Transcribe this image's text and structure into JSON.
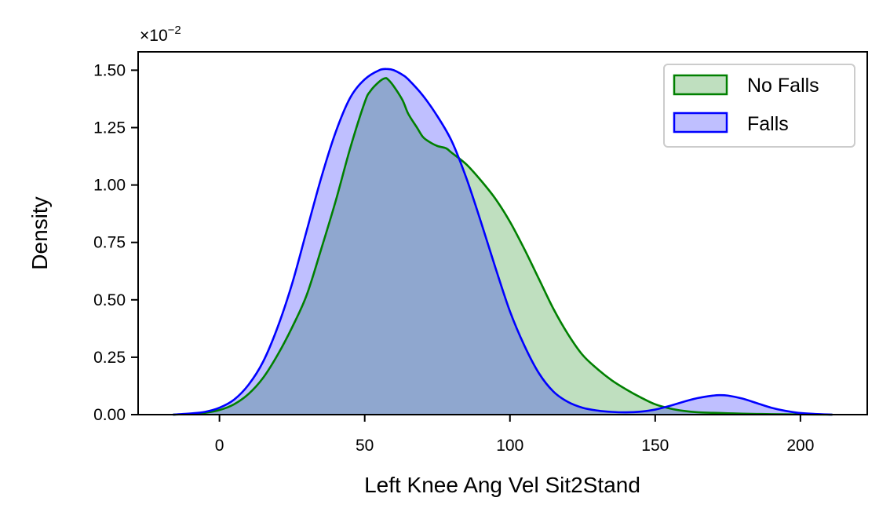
{
  "chart_data": {
    "type": "area",
    "xlabel": "Left Knee Ang Vel Sit2Stand",
    "ylabel": "Density",
    "y_multiplier": "×10",
    "y_exponent": "−2",
    "xlim": [
      -28,
      223
    ],
    "ylim": [
      0,
      1.58
    ],
    "xticks": [
      0,
      50,
      100,
      150,
      200
    ],
    "xtick_labels": [
      "0",
      "50",
      "100",
      "150",
      "200"
    ],
    "yticks": [
      0,
      0.25,
      0.5,
      0.75,
      1.0,
      1.25,
      1.5
    ],
    "ytick_labels": [
      "0.00",
      "0.25",
      "0.50",
      "0.75",
      "1.00",
      "1.25",
      "1.50"
    ],
    "grid": false,
    "legend_position": "top-right",
    "series": [
      {
        "name": "No Falls",
        "color": "#008000",
        "fill": "rgba(0,128,0,0.25)",
        "x": [
          -16,
          -10,
          -5,
          0,
          5,
          10,
          15,
          20,
          25,
          30,
          35,
          40,
          45,
          50,
          52,
          55,
          57,
          58,
          60,
          63,
          65,
          68,
          70,
          72,
          75,
          78,
          80,
          85,
          90,
          95,
          100,
          105,
          110,
          115,
          120,
          125,
          130,
          135,
          140,
          145,
          150,
          155,
          160,
          165,
          170,
          175,
          180,
          185,
          190,
          200,
          211
        ],
        "y": [
          0.0,
          0.003,
          0.008,
          0.02,
          0.045,
          0.09,
          0.16,
          0.26,
          0.38,
          0.52,
          0.72,
          0.93,
          1.16,
          1.36,
          1.41,
          1.45,
          1.465,
          1.46,
          1.43,
          1.37,
          1.31,
          1.25,
          1.21,
          1.19,
          1.17,
          1.16,
          1.14,
          1.09,
          1.02,
          0.94,
          0.84,
          0.72,
          0.59,
          0.46,
          0.35,
          0.26,
          0.2,
          0.15,
          0.11,
          0.075,
          0.045,
          0.027,
          0.016,
          0.01,
          0.008,
          0.006,
          0.004,
          0.003,
          0.002,
          0.001,
          0.0
        ]
      },
      {
        "name": "Falls",
        "color": "#0000ff",
        "fill": "rgba(0,0,255,0.25)",
        "x": [
          -16,
          -10,
          -5,
          0,
          5,
          10,
          15,
          20,
          25,
          30,
          35,
          40,
          45,
          50,
          55,
          58,
          60,
          63,
          65,
          70,
          75,
          80,
          85,
          90,
          95,
          100,
          105,
          110,
          115,
          120,
          125,
          130,
          135,
          140,
          145,
          150,
          155,
          160,
          165,
          170,
          172,
          175,
          180,
          185,
          190,
          195,
          200,
          205,
          211
        ],
        "y": [
          0.0,
          0.005,
          0.012,
          0.03,
          0.065,
          0.13,
          0.23,
          0.38,
          0.57,
          0.8,
          1.03,
          1.23,
          1.38,
          1.46,
          1.5,
          1.505,
          1.5,
          1.48,
          1.46,
          1.39,
          1.3,
          1.19,
          1.03,
          0.84,
          0.64,
          0.45,
          0.3,
          0.18,
          0.1,
          0.055,
          0.03,
          0.018,
          0.012,
          0.01,
          0.013,
          0.022,
          0.038,
          0.057,
          0.073,
          0.083,
          0.085,
          0.083,
          0.07,
          0.05,
          0.03,
          0.016,
          0.007,
          0.003,
          0.0
        ]
      }
    ]
  }
}
